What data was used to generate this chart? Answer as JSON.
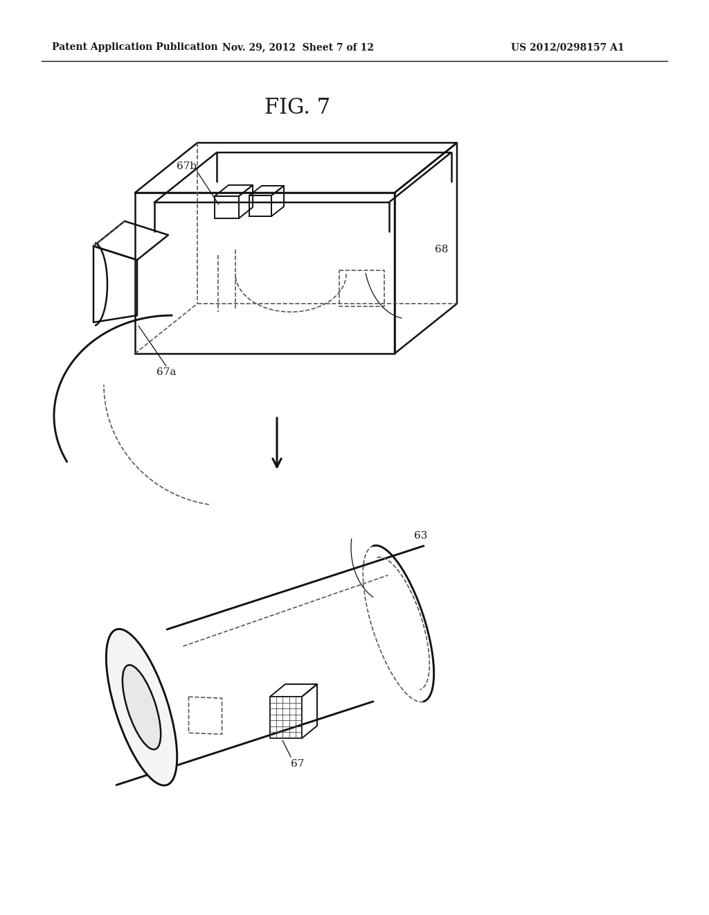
{
  "background_color": "#ffffff",
  "header_left": "Patent Application Publication",
  "header_mid": "Nov. 29, 2012  Sheet 7 of 12",
  "header_right": "US 2012/0298157 A1",
  "fig_title": "FIG. 7",
  "text_color": "#1a1a1a",
  "line_color": "#111111",
  "dashed_color": "#555555"
}
